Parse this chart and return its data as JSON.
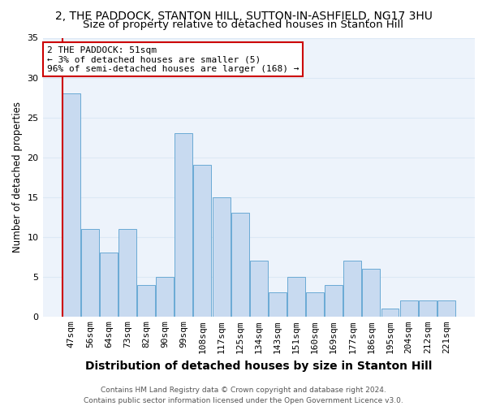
{
  "title": "2, THE PADDOCK, STANTON HILL, SUTTON-IN-ASHFIELD, NG17 3HU",
  "subtitle": "Size of property relative to detached houses in Stanton Hill",
  "xlabel": "Distribution of detached houses by size in Stanton Hill",
  "ylabel": "Number of detached properties",
  "categories": [
    "47sqm",
    "56sqm",
    "64sqm",
    "73sqm",
    "82sqm",
    "90sqm",
    "99sqm",
    "108sqm",
    "117sqm",
    "125sqm",
    "134sqm",
    "143sqm",
    "151sqm",
    "160sqm",
    "169sqm",
    "177sqm",
    "186sqm",
    "195sqm",
    "204sqm",
    "212sqm",
    "221sqm"
  ],
  "values": [
    28,
    11,
    8,
    11,
    4,
    5,
    23,
    19,
    15,
    13,
    7,
    3,
    5,
    3,
    4,
    7,
    6,
    1,
    2,
    2,
    2
  ],
  "bar_color": "#c8daf0",
  "bar_edge_color": "#6aaad4",
  "highlight_color": "#cc0000",
  "annotation_text": "2 THE PADDOCK: 51sqm\n← 3% of detached houses are smaller (5)\n96% of semi-detached houses are larger (168) →",
  "annotation_box_color": "#ffffff",
  "annotation_box_edge": "#cc0000",
  "ylim": [
    0,
    35
  ],
  "yticks": [
    0,
    5,
    10,
    15,
    20,
    25,
    30,
    35
  ],
  "grid_color": "#dce8f5",
  "background_color": "#edf3fb",
  "footer": "Contains HM Land Registry data © Crown copyright and database right 2024.\nContains public sector information licensed under the Open Government Licence v3.0.",
  "title_fontsize": 10,
  "subtitle_fontsize": 9.5,
  "xlabel_fontsize": 10,
  "ylabel_fontsize": 8.5,
  "tick_fontsize": 8,
  "annotation_fontsize": 8,
  "footer_fontsize": 6.5
}
